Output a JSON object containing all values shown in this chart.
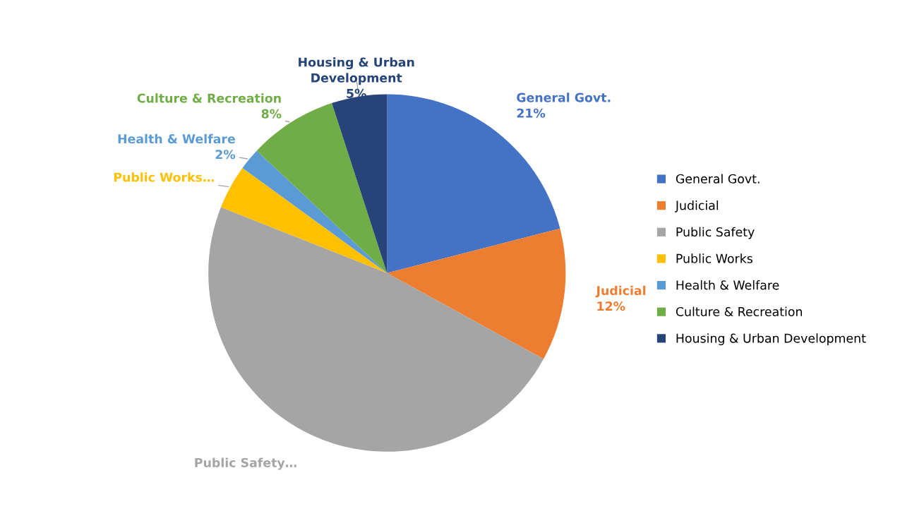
{
  "chart_data": {
    "type": "pie",
    "categories": [
      "General Govt.",
      "Judicial",
      "Public Safety",
      "Public Works",
      "Health & Welfare",
      "Culture & Recreation",
      "Housing & Urban Development"
    ],
    "values": [
      21,
      12,
      48,
      4,
      2,
      8,
      5
    ],
    "colors": [
      "#4472c4",
      "#ed7d31",
      "#a5a5a5",
      "#ffc000",
      "#5b9bd5",
      "#70ad47",
      "#264478"
    ],
    "value_labels": [
      "General Govt.\n21%",
      "Judicial\n12%",
      "Public Safety…",
      "Public Works…",
      "Health & Welfare\n2%",
      "Culture & Recreation\n8%",
      "Housing & Urban\nDevelopment\n5%"
    ],
    "legend": "right"
  }
}
